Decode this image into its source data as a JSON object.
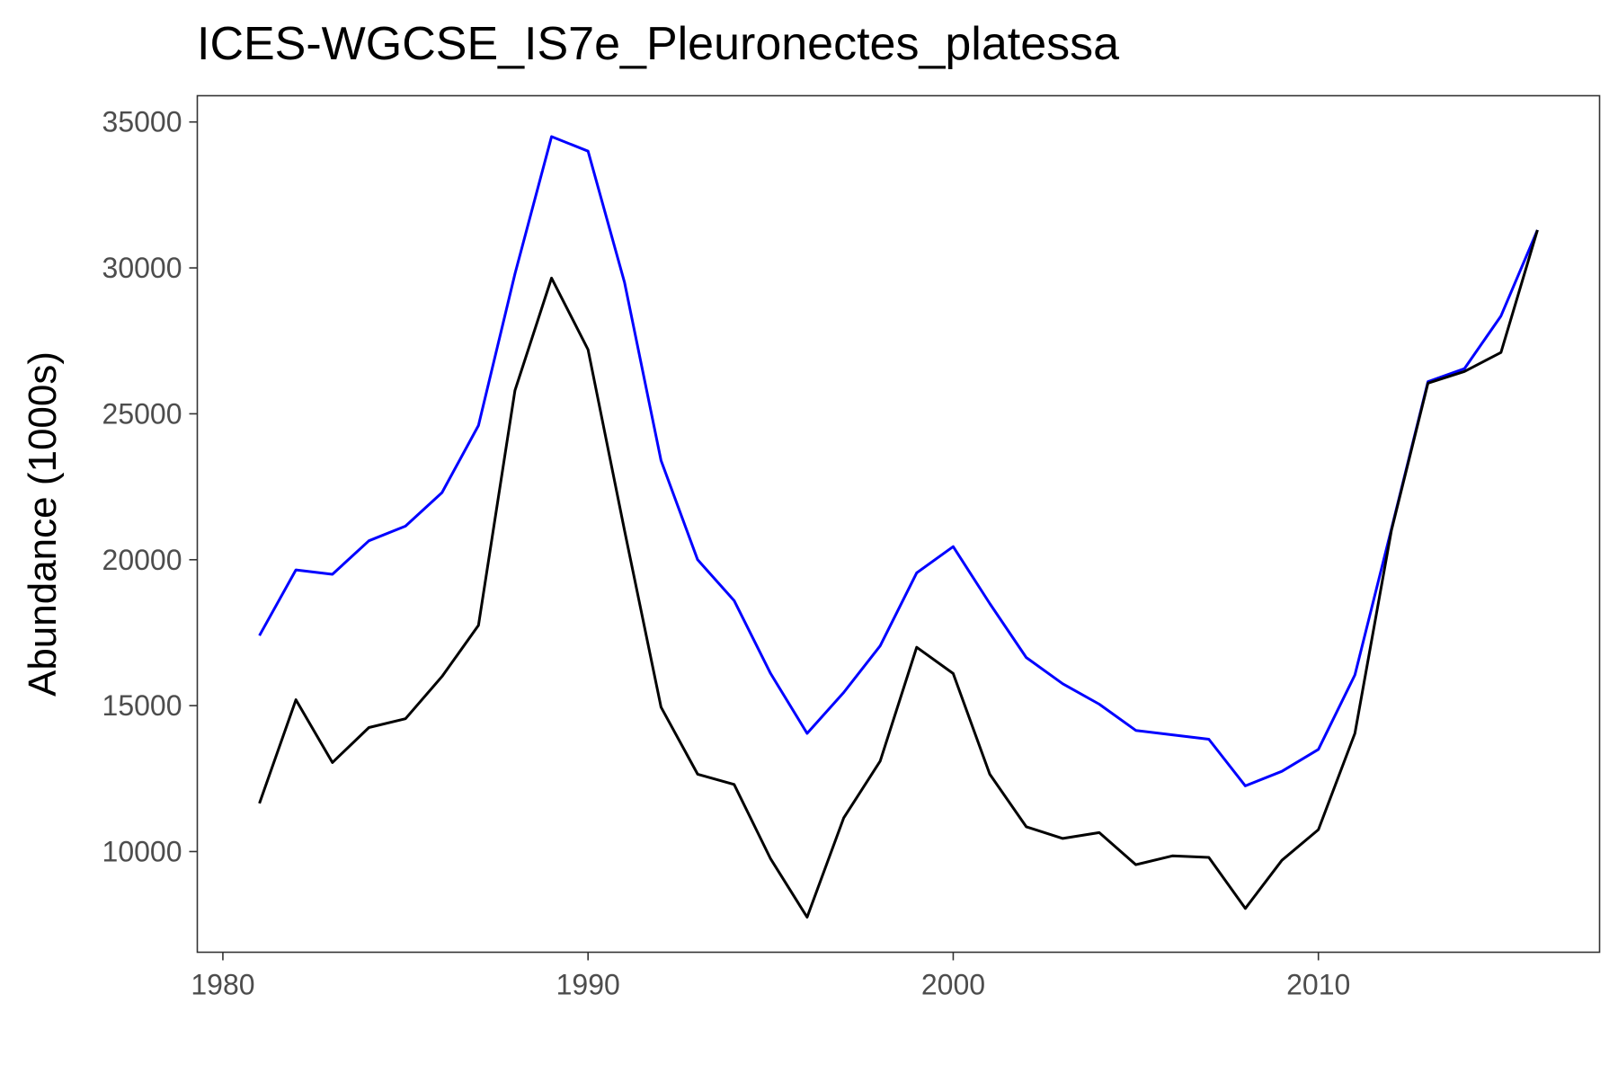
{
  "chart_data": {
    "type": "line",
    "title": "ICES-WGCSE_IS7e_Pleuronectes_platessa",
    "xlabel": "",
    "ylabel": "Abundance (1000s)",
    "xlim": [
      1979.3,
      2017.7
    ],
    "ylim": [
      6550,
      35900
    ],
    "xticks": [
      1980,
      1990,
      2000,
      2010
    ],
    "yticks": [
      10000,
      15000,
      20000,
      25000,
      30000,
      35000
    ],
    "grid": false,
    "legend": "none",
    "x": [
      1981,
      1982,
      1983,
      1984,
      1985,
      1986,
      1987,
      1988,
      1989,
      1990,
      1991,
      1992,
      1993,
      1994,
      1995,
      1996,
      1997,
      1998,
      1999,
      2000,
      2001,
      2002,
      2003,
      2004,
      2005,
      2006,
      2007,
      2008,
      2009,
      2010,
      2011,
      2012,
      2013,
      2014,
      2015,
      2016
    ],
    "series": [
      {
        "color": "#0000ff",
        "values": [
          17400,
          19650,
          19500,
          20650,
          21150,
          22300,
          24600,
          29800,
          34500,
          34000,
          29500,
          23400,
          20000,
          18600,
          16100,
          14050,
          15450,
          17050,
          19550,
          20450,
          18500,
          16650,
          15750,
          15050,
          14150,
          14000,
          13850,
          12250,
          12750,
          13500,
          16050,
          21050,
          26100,
          26550,
          28350,
          31300
        ]
      },
      {
        "color": "#000000",
        "values": [
          11650,
          15200,
          13050,
          14250,
          14550,
          16000,
          17750,
          25800,
          29650,
          27200,
          21000,
          14950,
          12650,
          12300,
          9750,
          7750,
          11150,
          13100,
          17000,
          16100,
          12650,
          10850,
          10450,
          10650,
          9550,
          9850,
          9800,
          8050,
          9700,
          10750,
          14050,
          21000,
          26050,
          26450,
          27100,
          31300
        ]
      }
    ]
  }
}
